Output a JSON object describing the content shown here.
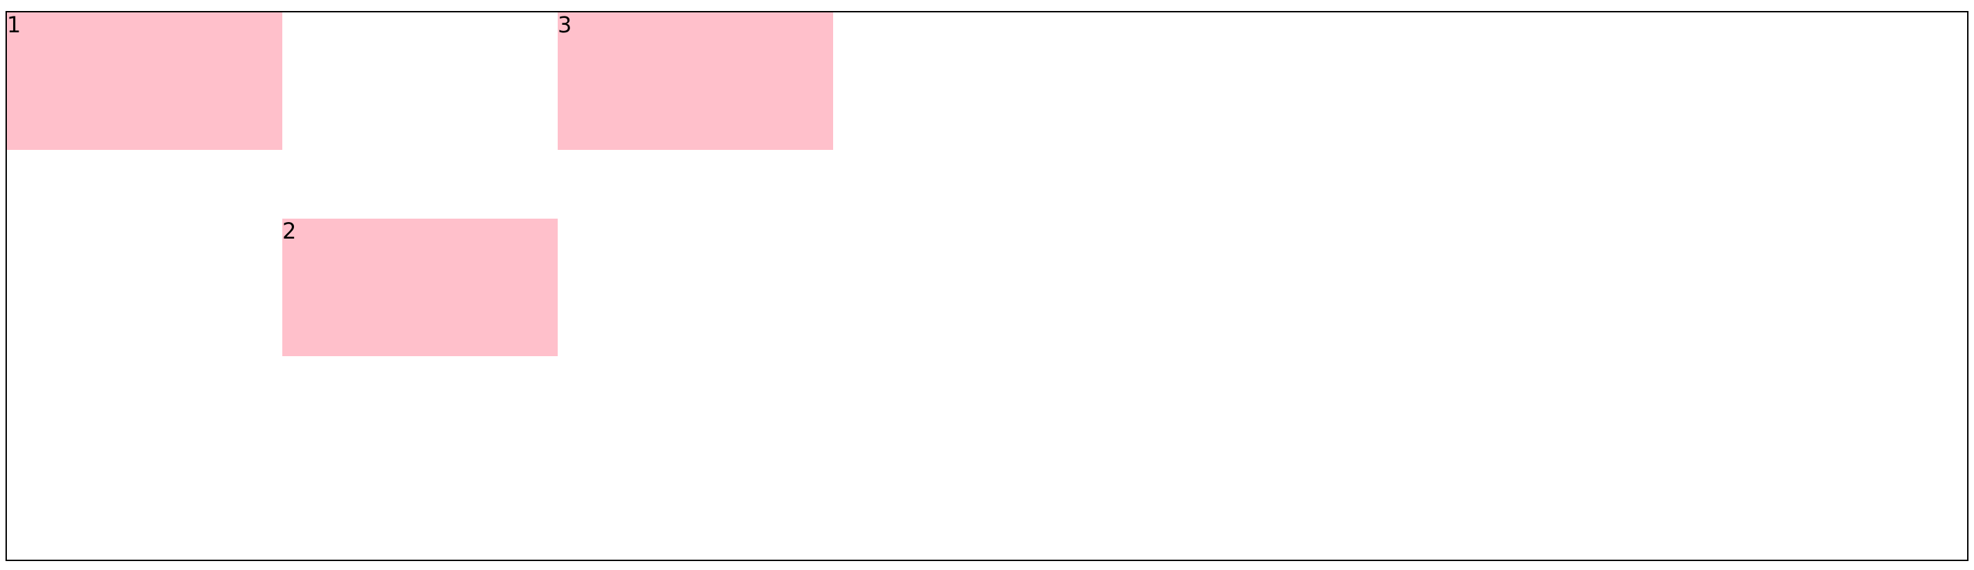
{
  "colors": {
    "box_fill": "#ffc0cb",
    "border": "#000000",
    "background": "#ffffff",
    "text": "#000000"
  },
  "boxes": [
    {
      "label": "1"
    },
    {
      "label": "2"
    },
    {
      "label": "3"
    }
  ]
}
